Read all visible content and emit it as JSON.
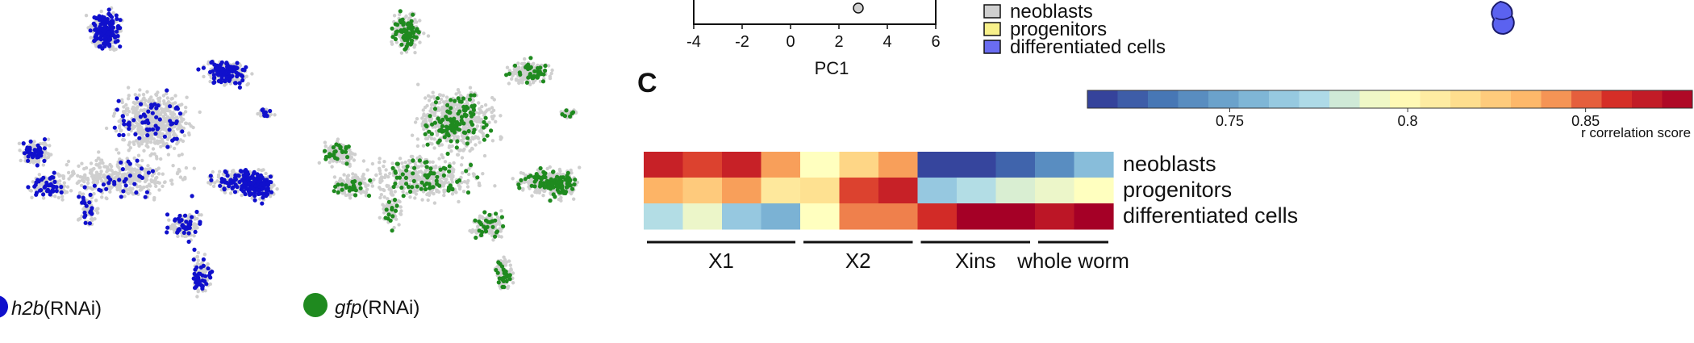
{
  "umap_panels": [
    {
      "label_gene": "h2b",
      "label_suffix": "(RNAi)",
      "color": "#1010cc"
    },
    {
      "label_gene": "gfp",
      "label_suffix": "(RNAi)",
      "color": "#1f8a1f"
    }
  ],
  "background_points_color": "#cfcfcf",
  "pca_panel": {
    "xlabel": "PC1",
    "xticks": [
      "-4",
      "-2",
      "0",
      "2",
      "4",
      "6"
    ],
    "xlim": [
      -4,
      6
    ],
    "point_x": 2.8
  },
  "legend": {
    "items": [
      {
        "label": "neoblasts",
        "color": "#d0d0d0"
      },
      {
        "label": "progenitors",
        "color": "#f7f08a"
      },
      {
        "label": "differentiated cells",
        "color": "#6a6cf0"
      }
    ]
  },
  "panel_c": {
    "letter": "C",
    "colorbar": {
      "ticks": [
        "0.75",
        "0.8",
        "0.85"
      ],
      "tick_values": [
        0.75,
        0.8,
        0.85
      ],
      "range": [
        0.71,
        0.88
      ],
      "title": "r correlation score"
    },
    "groups": [
      {
        "label": "X1",
        "n": 4
      },
      {
        "label": "X2",
        "n": 3
      },
      {
        "label": "Xins",
        "n": 3
      },
      {
        "label": "whole worm",
        "n": 2
      }
    ]
  },
  "chart_data": {
    "type": "heatmap",
    "rows": [
      "neoblasts",
      "progenitors",
      "differentiated cells"
    ],
    "column_groups": [
      "X1",
      "X1",
      "X1",
      "X1",
      "X2",
      "X2",
      "X2",
      "Xins",
      "Xins",
      "Xins",
      "whole worm",
      "whole worm"
    ],
    "values": [
      [
        0.865,
        0.855,
        0.865,
        0.84,
        0.795,
        0.82,
        0.84,
        0.715,
        0.715,
        0.725,
        0.74,
        0.76
      ],
      [
        0.835,
        0.825,
        0.84,
        0.81,
        0.815,
        0.855,
        0.865,
        0.765,
        0.775,
        0.785,
        0.79,
        0.795
      ],
      [
        0.775,
        0.79,
        0.765,
        0.755,
        0.795,
        0.845,
        0.845,
        0.86,
        0.88,
        0.88,
        0.87,
        0.88
      ]
    ],
    "legend_title": "r correlation score",
    "zlim": [
      0.71,
      0.88
    ]
  }
}
